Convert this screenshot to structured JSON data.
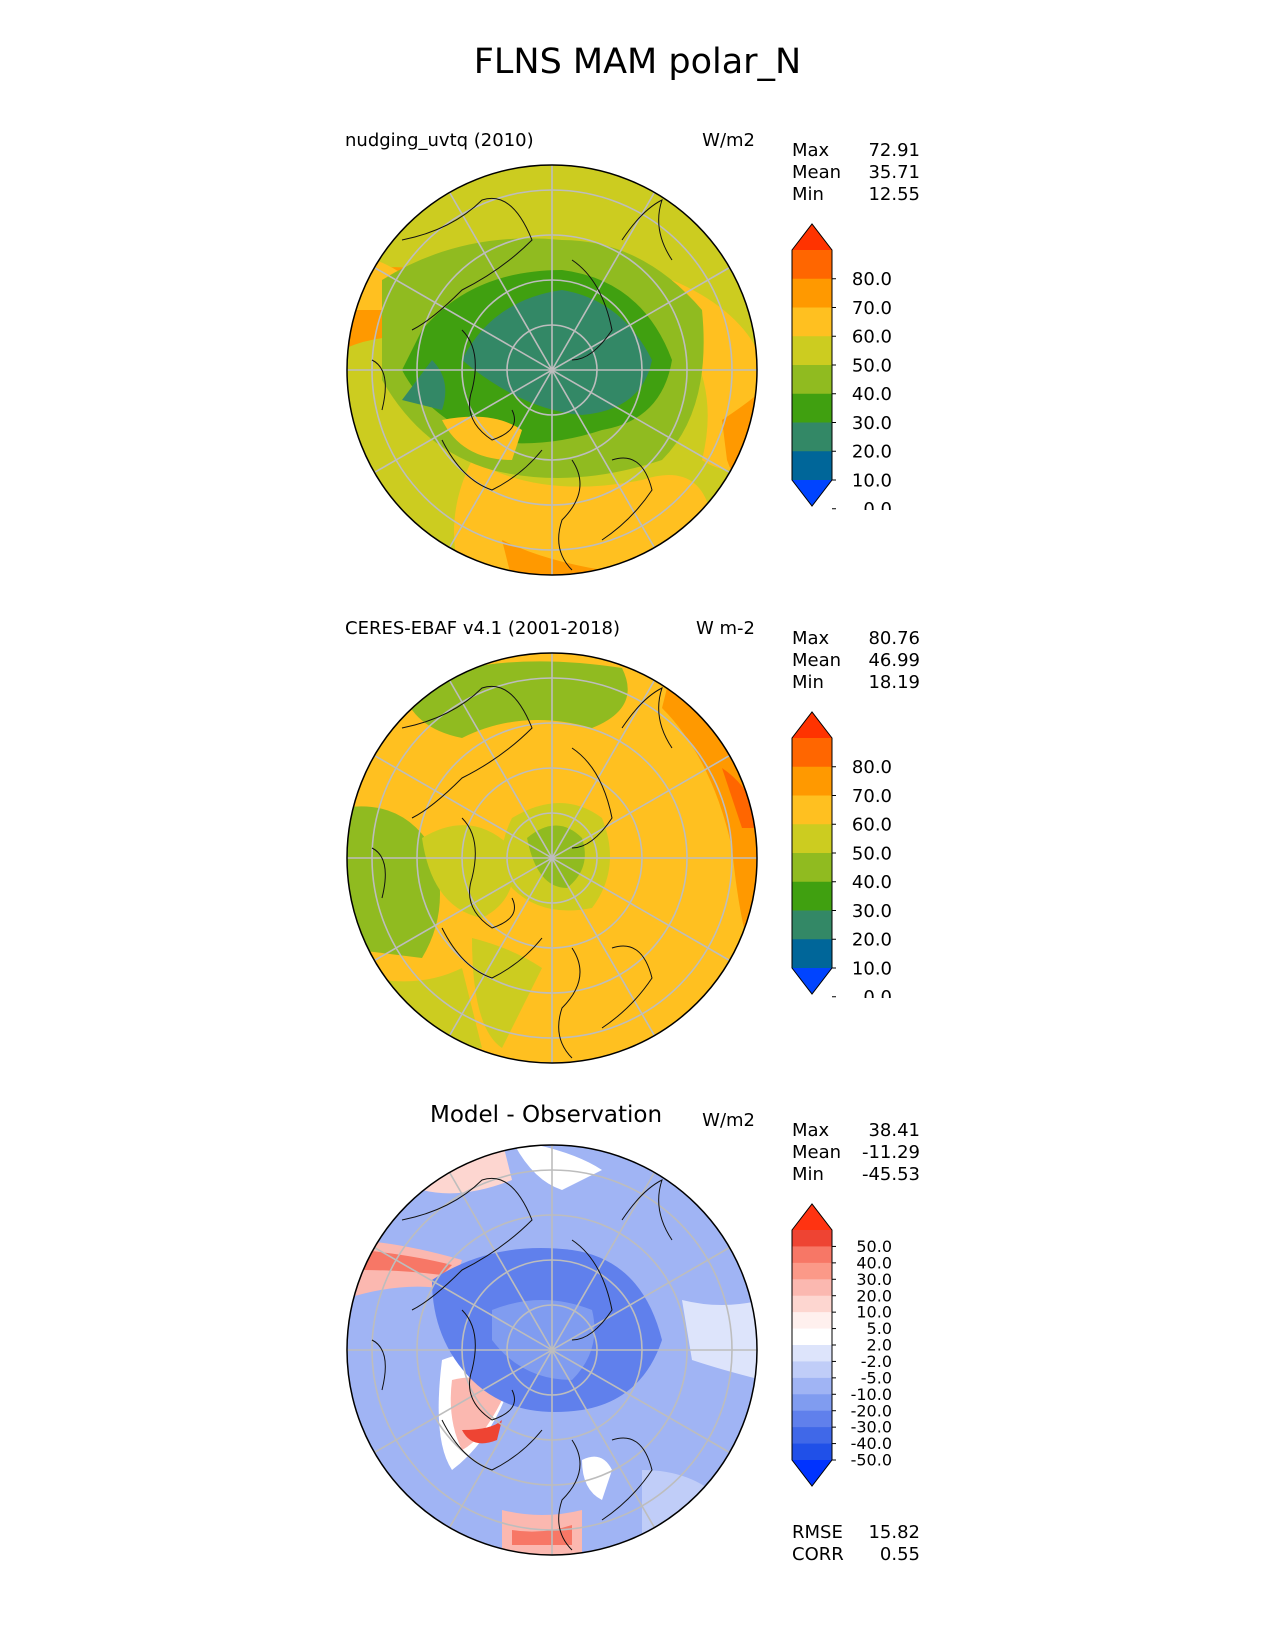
{
  "figure_title": "FLNS MAM polar_N",
  "panels": [
    {
      "name": "nudging_uvtq (2010)",
      "units": "W/m2",
      "stats": [
        {
          "label": "Max",
          "value": "72.91"
        },
        {
          "label": "Mean",
          "value": "35.71"
        },
        {
          "label": "Min",
          "value": "12.55"
        }
      ],
      "colorbar_ticks": [
        "80.0",
        "70.0",
        "60.0",
        "50.0",
        "40.0",
        "30.0",
        "20.0",
        "10.0",
        "0.0"
      ],
      "colorbar_colors": [
        "#ff3300",
        "#ff6600",
        "#ff9900",
        "#ffc020",
        "#cccc20",
        "#90bb20",
        "#40a010",
        "#338866",
        "#006699",
        "#0044ff"
      ]
    },
    {
      "name": "CERES-EBAF v4.1 (2001-2018)",
      "units": "W m-2",
      "stats": [
        {
          "label": "Max",
          "value": "80.76"
        },
        {
          "label": "Mean",
          "value": "46.99"
        },
        {
          "label": "Min",
          "value": "18.19"
        }
      ],
      "colorbar_ticks": [
        "80.0",
        "70.0",
        "60.0",
        "50.0",
        "40.0",
        "30.0",
        "20.0",
        "10.0",
        "0.0"
      ],
      "colorbar_colors": [
        "#ff3300",
        "#ff6600",
        "#ff9900",
        "#ffc020",
        "#cccc20",
        "#90bb20",
        "#40a010",
        "#338866",
        "#006699",
        "#0044ff"
      ]
    },
    {
      "name": "Model - Observation",
      "units": "W/m2",
      "stats": [
        {
          "label": "Max",
          "value": "38.41"
        },
        {
          "label": "Mean",
          "value": "-11.29"
        },
        {
          "label": "Min",
          "value": "-45.53"
        }
      ],
      "colorbar_ticks": [
        "50.0",
        "40.0",
        "30.0",
        "20.0",
        "10.0",
        "5.0",
        "2.0",
        "-2.0",
        "-5.0",
        "-10.0",
        "-20.0",
        "-30.0",
        "-40.0",
        "-50.0"
      ],
      "colorbar_colors": [
        "#ff3311",
        "#ee4433",
        "#f77766",
        "#fb9988",
        "#fbb8b0",
        "#fdd6d0",
        "#fff0ee",
        "#ffffff",
        "#dde4fb",
        "#c0cdf8",
        "#a0b4f4",
        "#809cf0",
        "#6080ec",
        "#4068e8",
        "#2050e8",
        "#0033ff"
      ],
      "footer": [
        {
          "label": "RMSE",
          "value": "15.82"
        },
        {
          "label": "CORR",
          "value": "0.55"
        }
      ]
    }
  ]
}
